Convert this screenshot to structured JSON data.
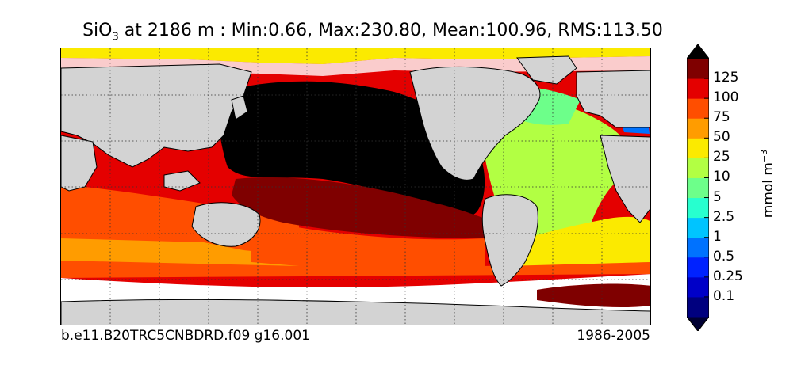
{
  "title": {
    "species_base": "SiO",
    "species_sub": "3",
    "text": " at 2186 m : Min:0.66, Max:230.80, Mean:100.96, RMS:113.50"
  },
  "caption": {
    "case": "b.e11.B20TRC5CNBDRD.f09 g16.001",
    "years": "1986-2005"
  },
  "colorbar": {
    "units_base": "mmol m",
    "units_exp": "−3",
    "extend": "both",
    "ticks": [
      "0.1",
      "0.25",
      "0.5",
      "1",
      "2.5",
      "5",
      "10",
      "25",
      "50",
      "75",
      "100",
      "125"
    ],
    "colors": [
      "#00007f",
      "#0000c8",
      "#0022ff",
      "#0072ff",
      "#00c4ff",
      "#27ffcf",
      "#6dff8a",
      "#b2ff43",
      "#fbea00",
      "#ff9c00",
      "#ff4e00",
      "#e40000",
      "#7f0000"
    ],
    "under_color": "#000033",
    "over_color": "#000000"
  },
  "map": {
    "projection": "global lat-lon",
    "land_color": "#d3d3d3",
    "no_data_color": "#ffffff",
    "gridlines": "dotted"
  }
}
